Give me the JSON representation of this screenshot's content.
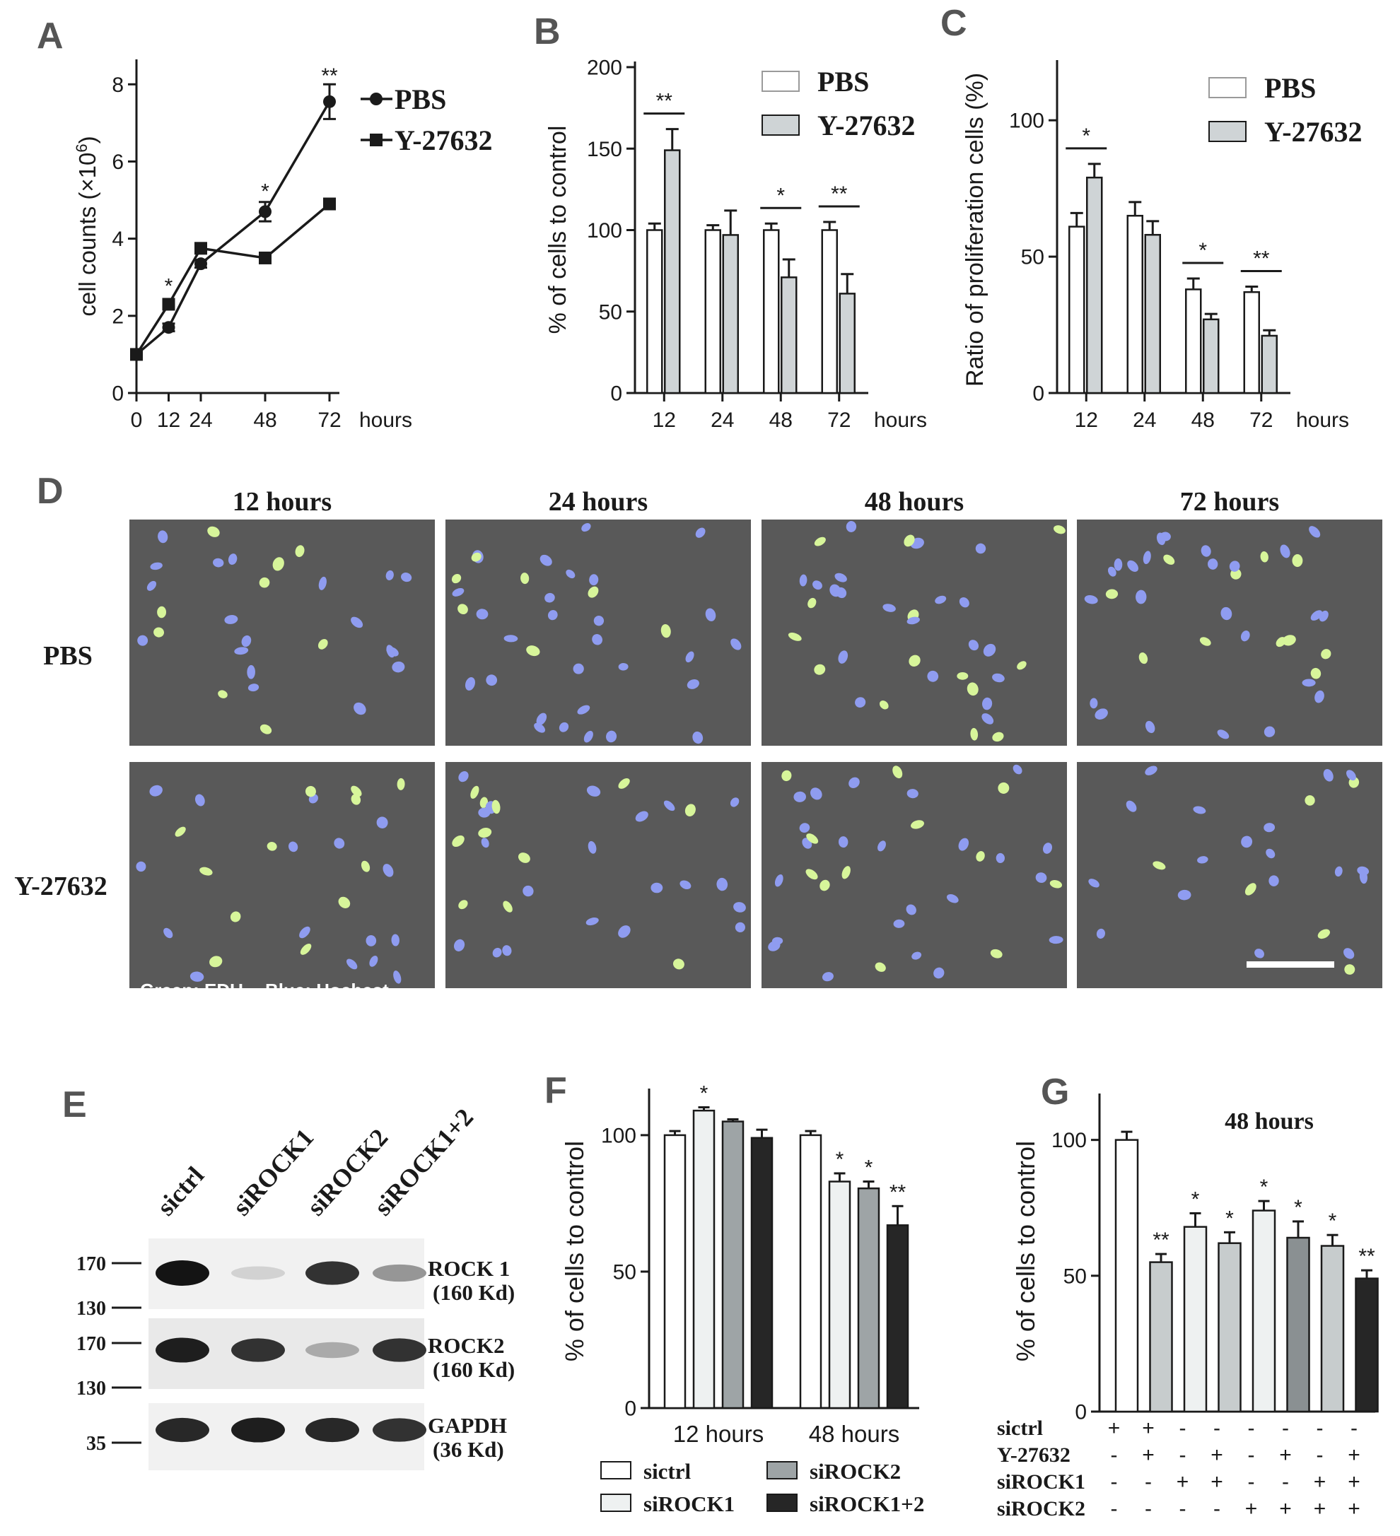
{
  "colors": {
    "axis": "#1a1a1a",
    "pbs_fill": "#ffffff",
    "y27632_fill": "#cfd4d6",
    "sictrl": "#ffffff",
    "siROCK1": "#eef1f1",
    "siROCK2": "#9ea4a6",
    "siROCK12": "#262626",
    "micro_bg": "#595959",
    "nucleus_blue": "#8f9cf0",
    "nucleus_green": "#d7f59a",
    "scale_bar": "#ffffff"
  },
  "panels": {
    "A": "A",
    "B": "B",
    "C": "C",
    "D": "D",
    "E": "E",
    "F": "F",
    "G": "G"
  },
  "chart_data": [
    {
      "panel": "A",
      "type": "line",
      "x": [
        0,
        12,
        24,
        48,
        72
      ],
      "ylim": [
        0,
        8.5
      ],
      "yticks": [
        "0",
        "2",
        "4",
        "6",
        "8"
      ],
      "xticks": [
        "0",
        "12",
        "24",
        "48",
        "72"
      ],
      "ylabel": "cell counts (×10",
      "ylabel_sup": "6",
      "ylabel_end": ")",
      "xlabel": "hours",
      "series": [
        {
          "name": "PBS",
          "marker": "circle",
          "values": [
            1.0,
            1.7,
            3.35,
            4.7,
            7.55
          ],
          "errors": [
            0,
            0.1,
            0.1,
            0.25,
            0.45
          ]
        },
        {
          "name": "Y-27632",
          "marker": "square",
          "values": [
            1.0,
            2.3,
            3.75,
            3.5,
            4.9
          ],
          "errors": [
            0,
            0.1,
            0.1,
            0.08,
            0.08
          ]
        }
      ],
      "annotations": [
        {
          "x": 12,
          "y": 2.85,
          "text": "*"
        },
        {
          "x": 48,
          "y": 5.3,
          "text": "*"
        },
        {
          "x": 72,
          "y": 8.3,
          "text": "**"
        }
      ],
      "legend": [
        "PBS",
        "Y-27632"
      ],
      "legend_position": "top-right"
    },
    {
      "panel": "B",
      "type": "bar",
      "categories": [
        "12",
        "24",
        "48",
        "72"
      ],
      "ylim": [
        0,
        200
      ],
      "yticks": [
        "0",
        "50",
        "100",
        "150",
        "200"
      ],
      "ylabel": "% of cells to control",
      "xlabel": "hours",
      "series": [
        {
          "name": "PBS",
          "values": [
            100,
            100,
            100,
            100
          ],
          "errors": [
            4,
            3,
            4,
            5
          ]
        },
        {
          "name": "Y-27632",
          "values": [
            149,
            97,
            71,
            61
          ],
          "errors": [
            13,
            15,
            11,
            12
          ]
        }
      ],
      "significance": [
        {
          "category": 0,
          "text": "**"
        },
        {
          "category": 2,
          "text": "*"
        },
        {
          "category": 3,
          "text": "**"
        }
      ],
      "legend": [
        "PBS",
        "Y-27632"
      ],
      "legend_position": "top-right"
    },
    {
      "panel": "C",
      "type": "bar",
      "categories": [
        "12",
        "24",
        "48",
        "72"
      ],
      "ylim": [
        0,
        120
      ],
      "yticks": [
        "0",
        "50",
        "100"
      ],
      "ylabel": "Ratio of proliferation cells (%)",
      "xlabel": "hours",
      "series": [
        {
          "name": "PBS",
          "values": [
            61,
            65,
            38,
            37
          ],
          "errors": [
            5,
            5,
            4,
            2
          ]
        },
        {
          "name": "Y-27632",
          "values": [
            79,
            58,
            27,
            21
          ],
          "errors": [
            5,
            5,
            2,
            2
          ]
        }
      ],
      "significance": [
        {
          "category": 0,
          "text": "*"
        },
        {
          "category": 2,
          "text": "*"
        },
        {
          "category": 3,
          "text": "**"
        }
      ],
      "legend": [
        "PBS",
        "Y-27632"
      ],
      "legend_position": "top-right"
    },
    {
      "panel": "F",
      "type": "bar",
      "categories": [
        "12 hours",
        "48 hours"
      ],
      "ylim": [
        0,
        115
      ],
      "yticks": [
        "0",
        "50",
        "100"
      ],
      "ylabel": "% of cells to control",
      "series": [
        {
          "name": "sictrl",
          "values": [
            100,
            100
          ],
          "errors": [
            1.5,
            1.5
          ]
        },
        {
          "name": "siROCK1",
          "values": [
            109,
            83
          ],
          "errors": [
            1.2,
            3
          ]
        },
        {
          "name": "siROCK2",
          "values": [
            105,
            80.5
          ],
          "errors": [
            0.8,
            2.5
          ]
        },
        {
          "name": "siROCK1+2",
          "values": [
            99,
            67
          ],
          "errors": [
            3,
            7
          ]
        }
      ],
      "annotations": [
        {
          "group": 0,
          "series": 1,
          "text": "*"
        },
        {
          "group": 1,
          "series": 1,
          "text": "*"
        },
        {
          "group": 1,
          "series": 2,
          "text": "*"
        },
        {
          "group": 1,
          "series": 3,
          "text": "**"
        }
      ],
      "legend": [
        "sictrl",
        "siROCK1",
        "siROCK2",
        "siROCK1+2"
      ],
      "legend_position": "bottom"
    },
    {
      "panel": "G",
      "type": "bar",
      "title": "48 hours",
      "ylim": [
        0,
        115
      ],
      "yticks": [
        "0",
        "50",
        "100"
      ],
      "ylabel": "% of cells to control",
      "values": [
        100,
        55,
        68,
        62,
        74,
        64,
        61,
        49
      ],
      "errors": [
        3,
        3,
        5,
        4,
        3.5,
        6,
        4,
        3
      ],
      "annotations": [
        "",
        "**",
        "*",
        "*",
        "*",
        "*",
        "*",
        "**"
      ],
      "row_labels": [
        "sictrl",
        "Y-27632",
        "siROCK1",
        "siROCK2"
      ],
      "treatment_matrix": [
        [
          "+",
          "+",
          "-",
          "-",
          "-",
          "-",
          "-",
          "-"
        ],
        [
          "-",
          "+",
          "-",
          "+",
          "-",
          "+",
          "-",
          "+"
        ],
        [
          "-",
          "-",
          "+",
          "+",
          "-",
          "-",
          "+",
          "+"
        ],
        [
          "-",
          "-",
          "-",
          "-",
          "+",
          "+",
          "+",
          "+"
        ]
      ]
    }
  ],
  "micrograph": {
    "columns": [
      "12 hours",
      "24 hours",
      "48 hours",
      "72 hours"
    ],
    "rows": [
      "PBS",
      "Y-27632"
    ],
    "legend_green": "Green: EDU",
    "legend_blue": "Blue: Hochest"
  },
  "western": {
    "lanes": [
      "sictrl",
      "siROCK1",
      "siROCK2",
      "siROCK1+2"
    ],
    "markers": [
      "170",
      "130",
      "170",
      "130",
      "35"
    ],
    "blots": [
      {
        "label1": "ROCK 1",
        "label2": "(160 Kd)",
        "intensities": [
          1.0,
          0.05,
          0.85,
          0.35
        ]
      },
      {
        "label1": "ROCK2",
        "label2": "(160 Kd)",
        "intensities": [
          0.95,
          0.85,
          0.25,
          0.85
        ]
      },
      {
        "label1": "GAPDH",
        "label2": "(36 Kd)",
        "intensities": [
          0.9,
          0.95,
          0.9,
          0.85
        ]
      }
    ]
  }
}
